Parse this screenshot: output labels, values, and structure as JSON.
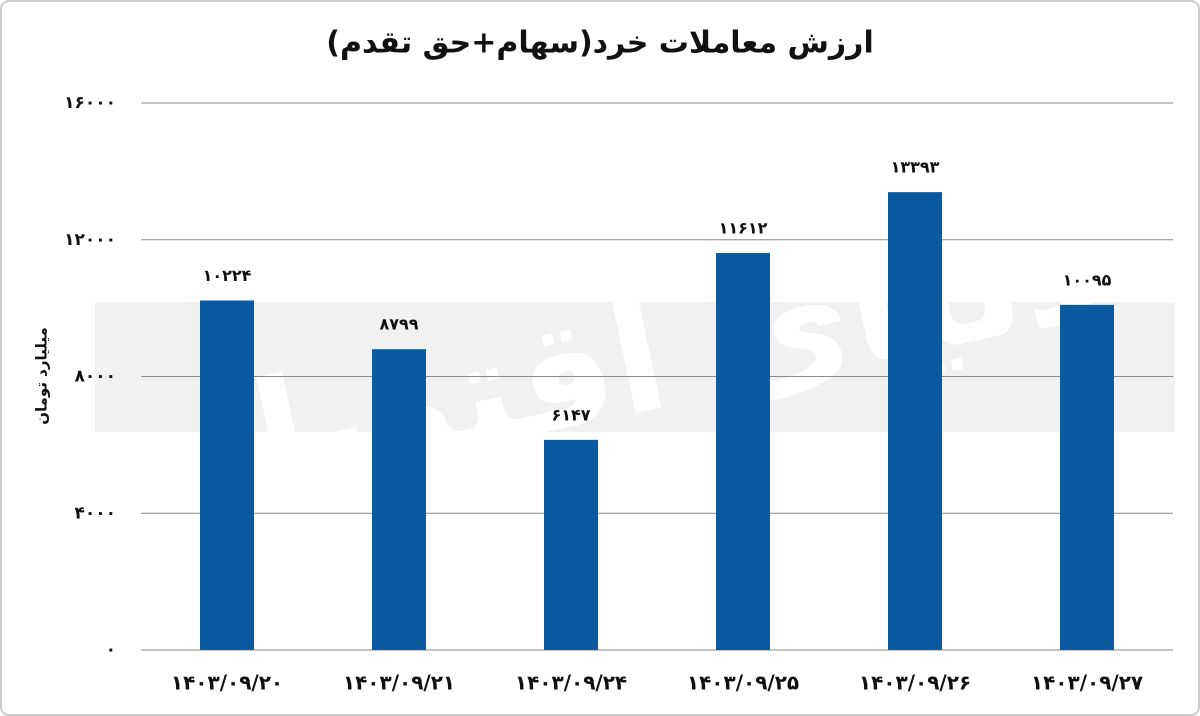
{
  "chart_data": {
    "type": "bar",
    "title": "ارزش معاملات خرد(سهام+حق تقدم)",
    "y_label": "میلیارد تومان",
    "watermark": "دنیای اقتصاد",
    "categories": [
      "۱۴۰۳/۰۹/۲۰",
      "۱۴۰۳/۰۹/۲۱",
      "۱۴۰۳/۰۹/۲۴",
      "۱۴۰۳/۰۹/۲۵",
      "۱۴۰۳/۰۹/۲۶",
      "۱۴۰۳/۰۹/۲۷"
    ],
    "values": [
      10224,
      8799,
      6147,
      11612,
      13393,
      10095
    ],
    "value_labels": [
      "۱۰۲۲۴",
      "۸۷۹۹",
      "۶۱۴۷",
      "۱۱۶۱۲",
      "۱۳۳۹۳",
      "۱۰۰۹۵"
    ],
    "color": "#0b5aa0",
    "ylim": [
      0,
      16000
    ],
    "yticks": [
      {
        "value": 0,
        "label": "۰"
      },
      {
        "value": 4000,
        "label": "۴۰۰۰"
      },
      {
        "value": 8000,
        "label": "۸۰۰۰"
      },
      {
        "value": 12000,
        "label": "۱۲۰۰۰"
      },
      {
        "value": 16000,
        "label": "۱۶۰۰۰"
      }
    ],
    "grid": true
  }
}
